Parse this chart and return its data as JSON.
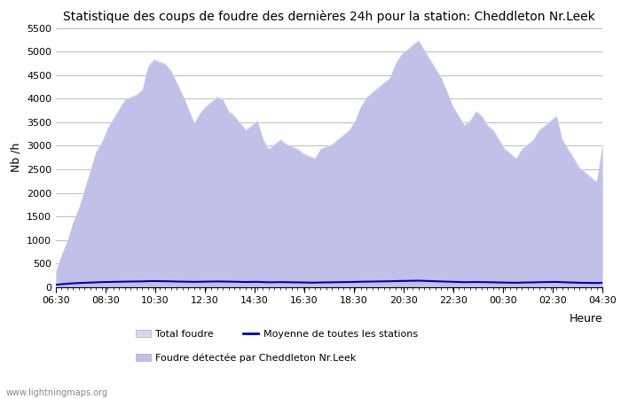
{
  "title": "Statistique des coups de foudre des dernières 24h pour la station: Cheddleton Nr.Leek",
  "xlabel": "Heure",
  "ylabel": "Nb /h",
  "ylim": [
    0,
    5500
  ],
  "yticks": [
    0,
    500,
    1000,
    1500,
    2000,
    2500,
    3000,
    3500,
    4000,
    4500,
    5000,
    5500
  ],
  "x_labels": [
    "06:30",
    "08:30",
    "10:30",
    "12:30",
    "14:30",
    "16:30",
    "18:30",
    "20:30",
    "22:30",
    "00:30",
    "02:30",
    "04:30"
  ],
  "watermark": "www.lightningmaps.org",
  "total_foudre_y": [
    350,
    700,
    1000,
    1400,
    1700,
    2100,
    2500,
    2900,
    3100,
    3400,
    3600,
    3800,
    4000,
    4050,
    4100,
    4200,
    4700,
    4850,
    4800,
    4750,
    4600,
    4350,
    4100,
    3800,
    3500,
    3700,
    3850,
    3950,
    4050,
    4000,
    3750,
    3650,
    3500,
    3350,
    3450,
    3550,
    3150,
    2950,
    3050,
    3150,
    3050,
    3000,
    2950,
    2850,
    2800,
    2750,
    2950,
    3000,
    3050,
    3150,
    3250,
    3350,
    3550,
    3850,
    4050,
    4150,
    4250,
    4350,
    4450,
    4750,
    4950,
    5050,
    5150,
    5250,
    5050,
    4850,
    4650,
    4450,
    4150,
    3850,
    3650,
    3450,
    3550,
    3750,
    3650,
    3450,
    3350,
    3150,
    2950,
    2850,
    2750,
    2950,
    3050,
    3150,
    3350,
    3450,
    3550,
    3650,
    3150,
    2950,
    2750,
    2550,
    2450,
    2350,
    2250,
    3050
  ],
  "cheddleton_y": [
    340,
    690,
    990,
    1380,
    1680,
    2080,
    2470,
    2870,
    3070,
    3370,
    3570,
    3770,
    3970,
    4020,
    4070,
    4170,
    4670,
    4820,
    4770,
    4720,
    4570,
    4320,
    4070,
    3770,
    3470,
    3670,
    3820,
    3920,
    4020,
    3970,
    3720,
    3620,
    3470,
    3320,
    3420,
    3520,
    3120,
    2920,
    3020,
    3120,
    3020,
    2970,
    2920,
    2820,
    2770,
    2720,
    2920,
    2970,
    3020,
    3120,
    3220,
    3320,
    3520,
    3820,
    4020,
    4120,
    4220,
    4320,
    4420,
    4720,
    4920,
    5020,
    5120,
    5220,
    5020,
    4820,
    4620,
    4420,
    4120,
    3820,
    3620,
    3420,
    3520,
    3720,
    3620,
    3420,
    3320,
    3120,
    2920,
    2820,
    2720,
    2920,
    3020,
    3120,
    3320,
    3420,
    3520,
    3620,
    3120,
    2920,
    2720,
    2520,
    2420,
    2320,
    2220,
    3020
  ],
  "moyenne_y": [
    55,
    65,
    75,
    85,
    90,
    95,
    100,
    105,
    110,
    112,
    115,
    118,
    120,
    122,
    124,
    125,
    130,
    132,
    130,
    128,
    126,
    122,
    120,
    118,
    115,
    118,
    120,
    122,
    124,
    122,
    120,
    118,
    115,
    112,
    114,
    116,
    110,
    106,
    108,
    110,
    108,
    106,
    104,
    102,
    100,
    98,
    102,
    104,
    106,
    108,
    110,
    112,
    114,
    118,
    120,
    122,
    124,
    126,
    128,
    132,
    134,
    136,
    138,
    140,
    136,
    132,
    128,
    124,
    120,
    116,
    112,
    108,
    110,
    112,
    110,
    108,
    106,
    102,
    100,
    98,
    96,
    100,
    102,
    104,
    108,
    110,
    112,
    114,
    108,
    104,
    100,
    96,
    94,
    92,
    90,
    95
  ],
  "bg_color": "#ffffff",
  "fill_total_color": "#d8d8f0",
  "fill_cheddleton_color": "#c0c0e8",
  "line_color": "#0000bb",
  "grid_color": "#bbbbbb",
  "title_fontsize": 10,
  "legend_labels": [
    "Total foudre",
    "Moyenne de toutes les stations",
    "Foudre détectée par Cheddleton Nr.Leek"
  ]
}
